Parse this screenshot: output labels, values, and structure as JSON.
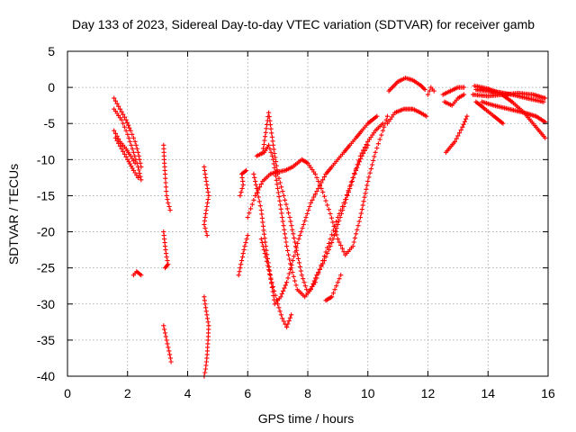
{
  "chart_data": {
    "type": "scatter",
    "title": "Day 133 of 2023, Sidereal Day-to-day VTEC variation (SDTVAR) for receiver gamb",
    "xlabel": "GPS time / hours",
    "ylabel": "SDTVAR / TECUs",
    "xlim": [
      0,
      16
    ],
    "ylim": [
      -40,
      5
    ],
    "xticks": [
      "0",
      "2",
      "4",
      "6",
      "8",
      "10",
      "12",
      "14",
      "16"
    ],
    "yticks": [
      "5",
      "0",
      "-5",
      "-10",
      "-15",
      "-20",
      "-25",
      "-30",
      "-35",
      "-40"
    ],
    "grid": true,
    "marker": "plus",
    "color": "#ff0000",
    "series": [
      {
        "points": [
          [
            1.55,
            -1.5
          ],
          [
            1.75,
            -3.0
          ],
          [
            1.95,
            -4.5
          ],
          [
            2.1,
            -6.0
          ],
          [
            2.25,
            -7.5
          ],
          [
            2.35,
            -9.0
          ],
          [
            2.45,
            -11.0
          ]
        ]
      },
      {
        "points": [
          [
            1.55,
            -3.0
          ],
          [
            1.8,
            -4.5
          ],
          [
            2.0,
            -6.5
          ],
          [
            2.2,
            -9.0
          ],
          [
            2.35,
            -11.0
          ],
          [
            2.45,
            -12.8
          ]
        ]
      },
      {
        "points": [
          [
            1.55,
            -6.0
          ],
          [
            1.75,
            -7.5
          ],
          [
            1.95,
            -8.5
          ],
          [
            2.1,
            -9.5
          ],
          [
            2.25,
            -10.5
          ]
        ]
      },
      {
        "points": [
          [
            1.6,
            -7.0
          ],
          [
            1.8,
            -8.5
          ],
          [
            2.0,
            -10.0
          ],
          [
            2.2,
            -11.5
          ],
          [
            2.35,
            -12.5
          ]
        ]
      },
      {
        "points": [
          [
            2.2,
            -26.0
          ],
          [
            2.3,
            -25.5
          ],
          [
            2.45,
            -26.0
          ]
        ]
      },
      {
        "points": [
          [
            3.2,
            -8.0
          ],
          [
            3.22,
            -10.0
          ],
          [
            3.25,
            -12.0
          ],
          [
            3.3,
            -15.0
          ],
          [
            3.35,
            -16.0
          ],
          [
            3.42,
            -17.0
          ]
        ]
      },
      {
        "points": [
          [
            3.2,
            -20.0
          ],
          [
            3.25,
            -22.0
          ],
          [
            3.3,
            -23.5
          ],
          [
            3.35,
            -24.5
          ],
          [
            3.25,
            -25.0
          ]
        ]
      },
      {
        "points": [
          [
            3.2,
            -33.0
          ],
          [
            3.3,
            -35.0
          ],
          [
            3.38,
            -36.5
          ],
          [
            3.45,
            -38.0
          ]
        ]
      },
      {
        "points": [
          [
            4.55,
            -11.0
          ],
          [
            4.62,
            -13.0
          ],
          [
            4.7,
            -15.0
          ],
          [
            4.62,
            -17.0
          ],
          [
            4.55,
            -19.0
          ],
          [
            4.65,
            -20.5
          ]
        ]
      },
      {
        "points": [
          [
            4.55,
            -29.0
          ],
          [
            4.62,
            -31.0
          ],
          [
            4.7,
            -33.0
          ],
          [
            4.68,
            -35.0
          ],
          [
            4.65,
            -37.0
          ],
          [
            4.6,
            -39.0
          ],
          [
            4.55,
            -40.0
          ]
        ]
      },
      {
        "points": [
          [
            5.7,
            -26.0
          ],
          [
            5.8,
            -24.0
          ],
          [
            5.9,
            -22.0
          ],
          [
            6.0,
            -20.5
          ]
        ]
      },
      {
        "points": [
          [
            5.75,
            -15.0
          ],
          [
            5.85,
            -13.5
          ],
          [
            5.8,
            -12.0
          ],
          [
            5.95,
            -11.5
          ]
        ]
      },
      {
        "points": [
          [
            6.0,
            -18.0
          ],
          [
            6.25,
            -15.0
          ],
          [
            6.5,
            -13.0
          ],
          [
            6.75,
            -12.0
          ],
          [
            7.0,
            -11.7
          ],
          [
            7.25,
            -11.5
          ],
          [
            7.5,
            -11.0
          ],
          [
            7.8,
            -10.0
          ],
          [
            8.0,
            -10.5
          ],
          [
            8.25,
            -12.0
          ],
          [
            8.5,
            -14.5
          ],
          [
            8.75,
            -17.5
          ],
          [
            9.0,
            -21.0
          ],
          [
            9.25,
            -23.2
          ],
          [
            9.5,
            -22.0
          ],
          [
            9.75,
            -18.0
          ],
          [
            10.0,
            -13.0
          ],
          [
            10.25,
            -9.0
          ],
          [
            10.5,
            -6.0
          ],
          [
            10.65,
            -4.0
          ]
        ]
      },
      {
        "points": [
          [
            6.5,
            -9.0
          ],
          [
            6.7,
            -3.5
          ],
          [
            6.85,
            -8.0
          ],
          [
            7.0,
            -12.0
          ],
          [
            7.2,
            -15.0
          ],
          [
            7.4,
            -18.0
          ],
          [
            7.6,
            -22.0
          ],
          [
            7.8,
            -26.0
          ],
          [
            8.0,
            -28.5
          ],
          [
            8.25,
            -27.0
          ],
          [
            8.5,
            -24.0
          ],
          [
            8.75,
            -21.0
          ],
          [
            9.0,
            -18.0
          ],
          [
            9.25,
            -15.5
          ],
          [
            9.5,
            -12.5
          ],
          [
            9.75,
            -9.5
          ],
          [
            10.0,
            -7.5
          ],
          [
            10.25,
            -6.0
          ],
          [
            10.5,
            -5.0
          ]
        ]
      },
      {
        "points": [
          [
            6.2,
            -12.0
          ],
          [
            6.3,
            -14.0
          ],
          [
            6.45,
            -17.0
          ],
          [
            6.6,
            -22.0
          ],
          [
            6.75,
            -26.0
          ],
          [
            6.9,
            -30.0
          ],
          [
            7.1,
            -29.0
          ],
          [
            7.3,
            -27.0
          ],
          [
            7.5,
            -24.0
          ],
          [
            7.7,
            -21.0
          ],
          [
            7.9,
            -18.5
          ],
          [
            8.1,
            -16.0
          ],
          [
            8.35,
            -14.0
          ],
          [
            8.6,
            -12.0
          ],
          [
            8.8,
            -11.0
          ],
          [
            9.0,
            -10.0
          ],
          [
            9.2,
            -9.0
          ],
          [
            9.4,
            -8.0
          ],
          [
            9.6,
            -7.0
          ],
          [
            9.8,
            -6.0
          ],
          [
            10.0,
            -5.0
          ],
          [
            10.3,
            -4.0
          ]
        ]
      },
      {
        "points": [
          [
            6.3,
            -9.5
          ],
          [
            6.55,
            -9.0
          ],
          [
            6.7,
            -8.0
          ],
          [
            6.85,
            -10.0
          ],
          [
            7.0,
            -14.0
          ],
          [
            7.15,
            -18.0
          ],
          [
            7.3,
            -22.0
          ],
          [
            7.45,
            -25.0
          ],
          [
            7.65,
            -28.0
          ],
          [
            7.9,
            -29.0
          ],
          [
            8.1,
            -28.0
          ],
          [
            8.3,
            -26.0
          ],
          [
            8.55,
            -24.0
          ],
          [
            8.8,
            -21.5
          ],
          [
            9.0,
            -19.0
          ],
          [
            9.2,
            -16.5
          ],
          [
            9.4,
            -14.0
          ],
          [
            9.6,
            -11.5
          ],
          [
            9.8,
            -9.5
          ],
          [
            10.0,
            -8.0
          ]
        ]
      },
      {
        "points": [
          [
            6.45,
            -21.0
          ],
          [
            6.6,
            -23.5
          ],
          [
            6.8,
            -27.0
          ],
          [
            7.0,
            -30.0
          ],
          [
            7.15,
            -32.0
          ],
          [
            7.3,
            -33.2
          ],
          [
            7.45,
            -31.5
          ]
        ]
      },
      {
        "points": [
          [
            8.6,
            -29.5
          ],
          [
            8.8,
            -29.0
          ],
          [
            9.0,
            -27.0
          ],
          [
            9.1,
            -26.0
          ]
        ]
      },
      {
        "points": [
          [
            10.7,
            -0.5
          ],
          [
            11.0,
            0.8
          ],
          [
            11.25,
            1.3
          ],
          [
            11.5,
            1.0
          ],
          [
            11.75,
            0.3
          ],
          [
            11.9,
            -0.3
          ]
        ]
      },
      {
        "points": [
          [
            10.65,
            -5.0
          ],
          [
            10.9,
            -3.5
          ],
          [
            11.2,
            -3.0
          ],
          [
            11.5,
            -3.0
          ],
          [
            11.75,
            -3.5
          ],
          [
            11.95,
            -4.0
          ]
        ]
      },
      {
        "points": [
          [
            12.0,
            -1.0
          ],
          [
            12.1,
            0.0
          ],
          [
            12.2,
            -0.5
          ]
        ]
      },
      {
        "points": [
          [
            12.5,
            -1.0
          ],
          [
            12.75,
            -0.5
          ],
          [
            13.0,
            0.0
          ],
          [
            13.2,
            0.0
          ]
        ]
      },
      {
        "points": [
          [
            12.55,
            -2.0
          ],
          [
            12.8,
            -2.5
          ],
          [
            13.0,
            -1.5
          ],
          [
            13.2,
            -1.0
          ]
        ]
      },
      {
        "points": [
          [
            12.6,
            -9.0
          ],
          [
            12.9,
            -7.5
          ],
          [
            13.15,
            -5.5
          ],
          [
            13.3,
            -4.0
          ]
        ]
      },
      {
        "points": [
          [
            13.55,
            0.2
          ],
          [
            13.8,
            0.0
          ],
          [
            14.0,
            -0.2
          ],
          [
            14.2,
            -0.8
          ]
        ]
      },
      {
        "points": [
          [
            13.5,
            -1.0
          ],
          [
            14.0,
            -1.2
          ],
          [
            14.5,
            -1.0
          ],
          [
            15.0,
            -0.8
          ],
          [
            15.5,
            -1.0
          ],
          [
            15.9,
            -1.5
          ]
        ]
      },
      {
        "points": [
          [
            13.6,
            -0.3
          ],
          [
            14.0,
            -0.5
          ],
          [
            14.4,
            -0.7
          ],
          [
            14.8,
            -1.0
          ],
          [
            15.3,
            -1.5
          ],
          [
            15.85,
            -2.0
          ]
        ]
      },
      {
        "points": [
          [
            13.6,
            -2.0
          ],
          [
            13.9,
            -3.0
          ],
          [
            14.2,
            -4.0
          ],
          [
            14.5,
            -5.0
          ]
        ]
      },
      {
        "points": [
          [
            13.8,
            -2.0
          ],
          [
            14.2,
            -2.5
          ],
          [
            14.7,
            -3.0
          ],
          [
            15.2,
            -3.5
          ],
          [
            15.6,
            -4.0
          ],
          [
            15.9,
            -4.8
          ]
        ]
      },
      {
        "points": [
          [
            14.0,
            -0.2
          ],
          [
            14.4,
            -0.8
          ],
          [
            14.8,
            -2.0
          ],
          [
            15.2,
            -3.5
          ],
          [
            15.6,
            -5.5
          ],
          [
            15.9,
            -7.0
          ]
        ]
      }
    ]
  }
}
